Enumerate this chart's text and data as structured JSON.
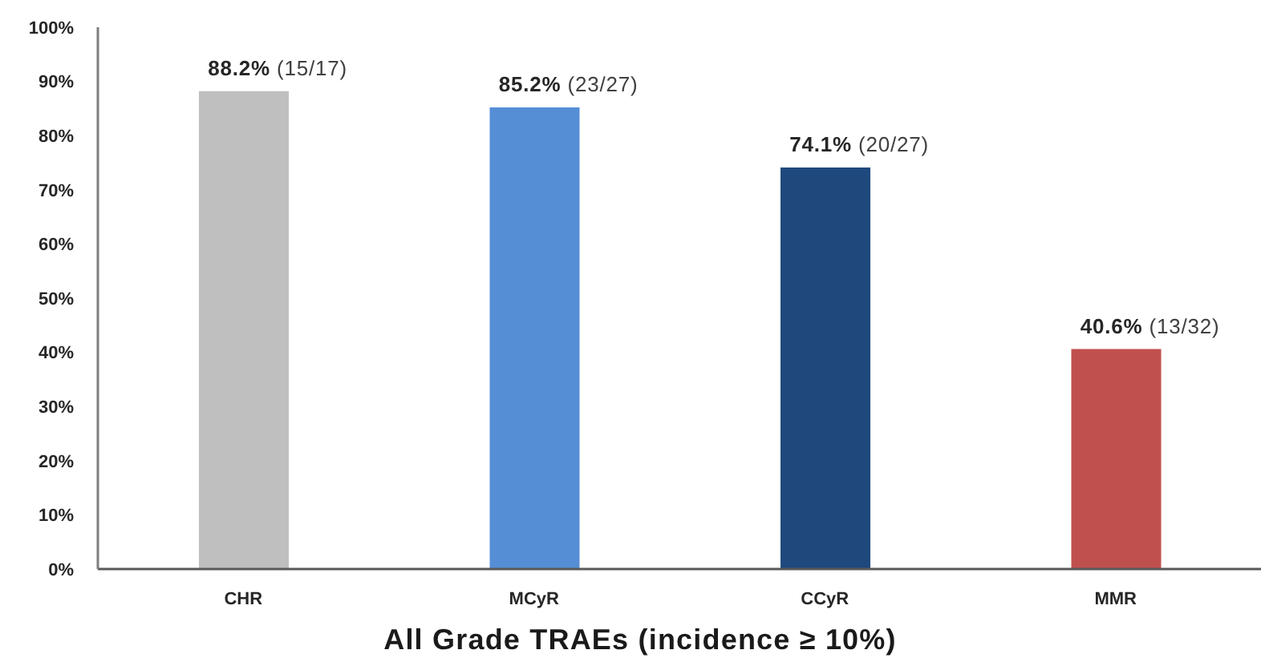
{
  "chart_data": {
    "type": "bar",
    "xlabel": "All Grade TRAEs (incidence ≥ 10%)",
    "categories": [
      "CHR",
      "MCyR",
      "CCyR",
      "MMR"
    ],
    "values": [
      88.2,
      85.2,
      74.1,
      40.6
    ],
    "colors": [
      "#bfbfbf",
      "#558ed5",
      "#1f497d",
      "#c0504d"
    ],
    "value_labels": [
      "88.2% (15/17)",
      "85.2% (23/27)",
      "74.1% (20/27)",
      "40.6% (13/32)"
    ],
    "ylim": [
      0,
      100
    ],
    "yticks": [
      {
        "value": 0,
        "label": "0%"
      },
      {
        "value": 10,
        "label": "10%"
      },
      {
        "value": 20,
        "label": "20%"
      },
      {
        "value": 30,
        "label": "30%"
      },
      {
        "value": 40,
        "label": "40%"
      },
      {
        "value": 50,
        "label": "50%"
      },
      {
        "value": 60,
        "label": "60%"
      },
      {
        "value": 70,
        "label": "70%"
      },
      {
        "value": 80,
        "label": "80%"
      },
      {
        "value": 90,
        "label": "90%"
      },
      {
        "value": 100,
        "label": "100%"
      }
    ]
  }
}
